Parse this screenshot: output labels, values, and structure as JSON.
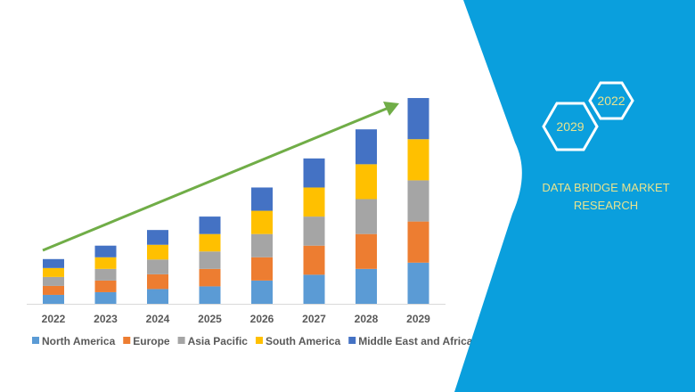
{
  "chart_data": {
    "type": "bar",
    "stacked": true,
    "title": "",
    "xlabel": "",
    "ylabel": "",
    "categories": [
      "2022",
      "2023",
      "2024",
      "2025",
      "2026",
      "2027",
      "2028",
      "2029"
    ],
    "ylim": [
      0,
      240
    ],
    "grid": false,
    "legend_placement": "bottom",
    "series": [
      {
        "name": "North America",
        "color": "#5b9bd5",
        "values": [
          10,
          13,
          16.5,
          19.5,
          26,
          32.5,
          39,
          46
        ]
      },
      {
        "name": "Europe",
        "color": "#ed7d31",
        "values": [
          10,
          13,
          16.5,
          19.5,
          26,
          32.5,
          39,
          46
        ]
      },
      {
        "name": "Asia Pacific",
        "color": "#a5a5a5",
        "values": [
          10,
          13,
          16.5,
          19.5,
          26,
          32.5,
          39,
          46
        ]
      },
      {
        "name": "South America",
        "color": "#ffc000",
        "values": [
          10,
          13,
          16.5,
          19.5,
          26,
          32.5,
          39,
          46
        ]
      },
      {
        "name": "Middle East and Africa",
        "color": "#4472c4",
        "values": [
          10,
          13,
          16.5,
          19.5,
          26,
          32.5,
          39,
          46
        ]
      }
    ],
    "annotations": {
      "trend_arrow_color": "#70ad47",
      "trend_direction": "increasing"
    }
  },
  "panel": {
    "color": "#0a9fdd",
    "text_color": "#e8e38e",
    "hex_years": [
      "2029",
      "2022"
    ],
    "brand_line1": "DATA BRIDGE MARKET",
    "brand_line2": "RESEARCH"
  }
}
